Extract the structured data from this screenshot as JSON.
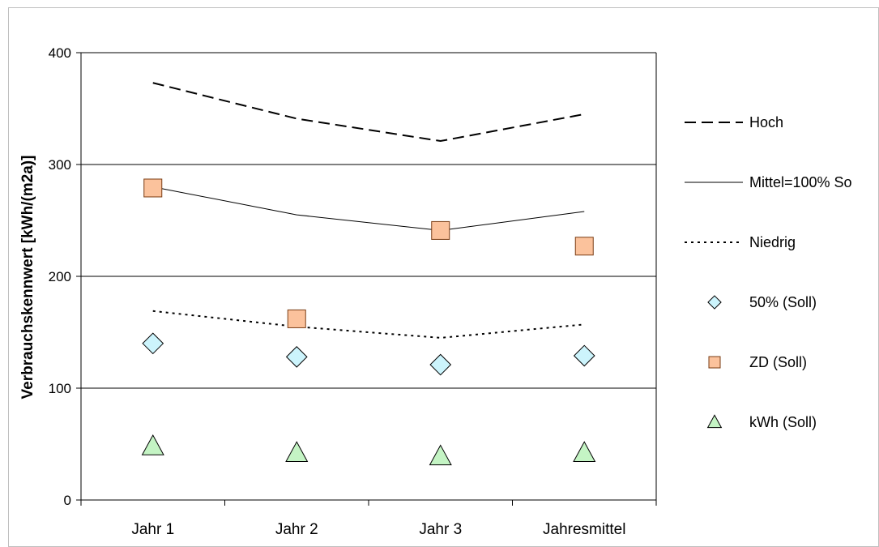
{
  "chart_data": {
    "type": "line",
    "title": "",
    "xlabel": "",
    "ylabel": "Verbrauchskennwert [kWh/(m2a)]",
    "ylim": [
      0,
      400
    ],
    "yticks": [
      0,
      100,
      200,
      300,
      400
    ],
    "grid": true,
    "legend_position": "right",
    "categories": [
      "Jahr 1",
      "Jahr 2",
      "Jahr 3",
      "Jahresmittel"
    ],
    "series": [
      {
        "name": "Hoch",
        "kind": "line",
        "style": "dashed",
        "color": "#000000",
        "values": [
          373,
          341,
          321,
          345
        ]
      },
      {
        "name": "Mittel=100% So",
        "kind": "line",
        "style": "solid",
        "color": "#000000",
        "values": [
          280,
          255,
          241,
          258
        ]
      },
      {
        "name": "Niedrig",
        "kind": "line",
        "style": "dotted",
        "color": "#000000",
        "values": [
          169,
          155,
          145,
          157
        ]
      },
      {
        "name": "50% (Soll)",
        "kind": "marker",
        "marker": "diamond",
        "color": "#ccf4fc",
        "values": [
          140,
          128,
          121,
          129
        ]
      },
      {
        "name": "ZD (Soll)",
        "kind": "marker",
        "marker": "square",
        "color": "#fbc29c",
        "values": [
          279,
          162,
          241,
          227
        ]
      },
      {
        "name": "kWh (Soll)",
        "kind": "marker",
        "marker": "triangle",
        "color": "#c4f4c4",
        "values": [
          48,
          42,
          39,
          42
        ]
      }
    ]
  }
}
